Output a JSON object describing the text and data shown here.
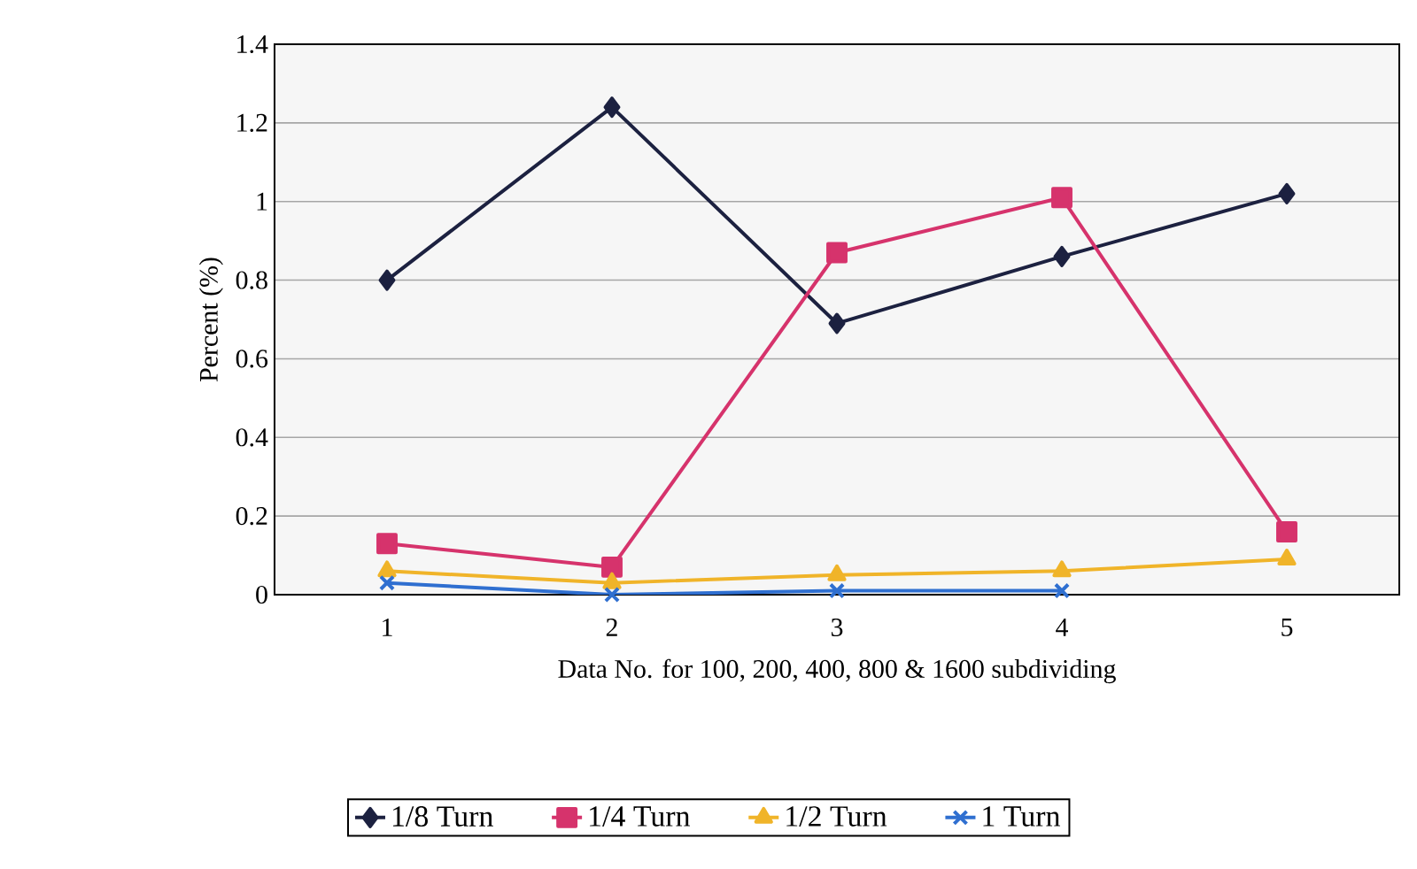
{
  "chart_data": {
    "type": "line",
    "xlabel": "Data No. for 100, 200, 400, 800 & 1600 subdividing",
    "ylabel": "Percent (%)",
    "categories": [
      "1",
      "2",
      "3",
      "4",
      "5"
    ],
    "ylim": [
      0,
      1.4
    ],
    "yticks": [
      0,
      0.2,
      0.4,
      0.6,
      0.8,
      1,
      1.2,
      1.4
    ],
    "grid": "y",
    "legend": "bottom",
    "series": [
      {
        "name": "1/8 Turn",
        "color": "#1c2140",
        "marker": "diamond",
        "values": [
          0.8,
          1.24,
          0.69,
          0.86,
          1.02
        ]
      },
      {
        "name": "1/4 Turn",
        "color": "#d6336c",
        "marker": "square",
        "values": [
          0.13,
          0.07,
          0.87,
          1.01,
          0.16
        ]
      },
      {
        "name": "1/2 Turn",
        "color": "#f0b429",
        "marker": "triangle",
        "values": [
          0.06,
          0.03,
          0.05,
          0.06,
          0.09
        ]
      },
      {
        "name": "1 Turn",
        "color": "#2f6fd0",
        "marker": "cross",
        "values": [
          0.03,
          0.0,
          0.01,
          0.01,
          null
        ]
      }
    ]
  }
}
